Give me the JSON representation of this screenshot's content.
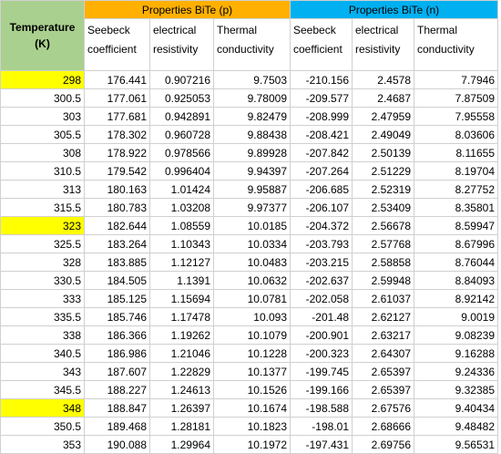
{
  "sheet": {
    "groups": [
      {
        "label": "Properties BiTe (p)"
      },
      {
        "label": "Properties BiTe (n)"
      }
    ],
    "temp_header": [
      "Temperature",
      "(K)"
    ],
    "columns": [
      [
        "Seebeck",
        "coefficient"
      ],
      [
        "electrical",
        "resistivity"
      ],
      [
        "Thermal",
        "conductivity"
      ],
      [
        "Seebeck",
        "coefficient"
      ],
      [
        "electrical",
        "resistivity"
      ],
      [
        "Thermal",
        "conductivity"
      ]
    ],
    "highlight_color": "#ffff00",
    "rows": [
      {
        "temp": "298",
        "highlight": true,
        "vals": [
          "176.441",
          "0.907216",
          "9.7503",
          "-210.156",
          "2.4578",
          "7.7946"
        ]
      },
      {
        "temp": "300.5",
        "highlight": false,
        "vals": [
          "177.061",
          "0.925053",
          "9.78009",
          "-209.577",
          "2.4687",
          "7.87509"
        ]
      },
      {
        "temp": "303",
        "highlight": false,
        "vals": [
          "177.681",
          "0.942891",
          "9.82479",
          "-208.999",
          "2.47959",
          "7.95558"
        ]
      },
      {
        "temp": "305.5",
        "highlight": false,
        "vals": [
          "178.302",
          "0.960728",
          "9.88438",
          "-208.421",
          "2.49049",
          "8.03606"
        ]
      },
      {
        "temp": "308",
        "highlight": false,
        "vals": [
          "178.922",
          "0.978566",
          "9.89928",
          "-207.842",
          "2.50139",
          "8.11655"
        ]
      },
      {
        "temp": "310.5",
        "highlight": false,
        "vals": [
          "179.542",
          "0.996404",
          "9.94397",
          "-207.264",
          "2.51229",
          "8.19704"
        ]
      },
      {
        "temp": "313",
        "highlight": false,
        "vals": [
          "180.163",
          "1.01424",
          "9.95887",
          "-206.685",
          "2.52319",
          "8.27752"
        ]
      },
      {
        "temp": "315.5",
        "highlight": false,
        "vals": [
          "180.783",
          "1.03208",
          "9.97377",
          "-206.107",
          "2.53409",
          "8.35801"
        ]
      },
      {
        "temp": "323",
        "highlight": true,
        "vals": [
          "182.644",
          "1.08559",
          "10.0185",
          "-204.372",
          "2.56678",
          "8.59947"
        ]
      },
      {
        "temp": "325.5",
        "highlight": false,
        "vals": [
          "183.264",
          "1.10343",
          "10.0334",
          "-203.793",
          "2.57768",
          "8.67996"
        ]
      },
      {
        "temp": "328",
        "highlight": false,
        "vals": [
          "183.885",
          "1.12127",
          "10.0483",
          "-203.215",
          "2.58858",
          "8.76044"
        ]
      },
      {
        "temp": "330.5",
        "highlight": false,
        "vals": [
          "184.505",
          "1.1391",
          "10.0632",
          "-202.637",
          "2.59948",
          "8.84093"
        ]
      },
      {
        "temp": "333",
        "highlight": false,
        "vals": [
          "185.125",
          "1.15694",
          "10.0781",
          "-202.058",
          "2.61037",
          "8.92142"
        ]
      },
      {
        "temp": "335.5",
        "highlight": false,
        "vals": [
          "185.746",
          "1.17478",
          "10.093",
          "-201.48",
          "2.62127",
          "9.0019"
        ]
      },
      {
        "temp": "338",
        "highlight": false,
        "vals": [
          "186.366",
          "1.19262",
          "10.1079",
          "-200.901",
          "2.63217",
          "9.08239"
        ]
      },
      {
        "temp": "340.5",
        "highlight": false,
        "vals": [
          "186.986",
          "1.21046",
          "10.1228",
          "-200.323",
          "2.64307",
          "9.16288"
        ]
      },
      {
        "temp": "343",
        "highlight": false,
        "vals": [
          "187.607",
          "1.22829",
          "10.1377",
          "-199.745",
          "2.65397",
          "9.24336"
        ]
      },
      {
        "temp": "345.5",
        "highlight": false,
        "vals": [
          "188.227",
          "1.24613",
          "10.1526",
          "-199.166",
          "2.65397",
          "9.32385"
        ]
      },
      {
        "temp": "348",
        "highlight": true,
        "vals": [
          "188.847",
          "1.26397",
          "10.1674",
          "-198.588",
          "2.67576",
          "9.40434"
        ]
      },
      {
        "temp": "350.5",
        "highlight": false,
        "vals": [
          "189.468",
          "1.28181",
          "10.1823",
          "-198.01",
          "2.68666",
          "9.48482"
        ]
      },
      {
        "temp": "353",
        "highlight": false,
        "vals": [
          "190.088",
          "1.29964",
          "10.1972",
          "-197.431",
          "2.69756",
          "9.56531"
        ]
      }
    ]
  }
}
